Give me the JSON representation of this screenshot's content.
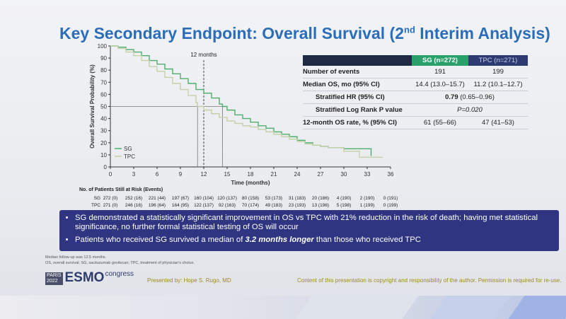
{
  "slide": {
    "title_main": "Key Secondary Endpoint: Overall Survival (2",
    "title_sup": "nd",
    "title_end": " Interim Analysis)"
  },
  "chart_data": {
    "type": "line",
    "ylabel": "Overall Survival Probability (%)",
    "xlabel": "Time (months)",
    "xlim": [
      0,
      36
    ],
    "ylim": [
      0,
      100
    ],
    "x_ticks": [
      0,
      3,
      6,
      9,
      12,
      15,
      18,
      21,
      24,
      27,
      30,
      33,
      36
    ],
    "y_ticks": [
      0,
      10,
      20,
      30,
      40,
      50,
      60,
      70,
      80,
      90,
      100
    ],
    "annotation": "12 months",
    "annotation_x": 12,
    "median_y": 50,
    "median_x": [
      14.4,
      11.2
    ],
    "legend": [
      "SG",
      "TPC"
    ],
    "legend_position": "bottom-left",
    "series": [
      {
        "name": "SG",
        "color": "#4fae6e",
        "points": [
          [
            0,
            100
          ],
          [
            1,
            99
          ],
          [
            2,
            97
          ],
          [
            3,
            95
          ],
          [
            4,
            92
          ],
          [
            5,
            88
          ],
          [
            6,
            85
          ],
          [
            7,
            81
          ],
          [
            8,
            77
          ],
          [
            9,
            73
          ],
          [
            10,
            69
          ],
          [
            11,
            64
          ],
          [
            12,
            61
          ],
          [
            13,
            57
          ],
          [
            14,
            52
          ],
          [
            14.4,
            50
          ],
          [
            15,
            47
          ],
          [
            16,
            43
          ],
          [
            17,
            40
          ],
          [
            18,
            37
          ],
          [
            19,
            34
          ],
          [
            20,
            32
          ],
          [
            21,
            29
          ],
          [
            22,
            27
          ],
          [
            23,
            25
          ],
          [
            24,
            22
          ],
          [
            25,
            20
          ],
          [
            26,
            18
          ],
          [
            27,
            17
          ],
          [
            28,
            16
          ],
          [
            29,
            16
          ],
          [
            30,
            15
          ],
          [
            31,
            15
          ],
          [
            32,
            15
          ],
          [
            33,
            15
          ],
          [
            33.5,
            9
          ]
        ]
      },
      {
        "name": "TPC",
        "color": "#c3d1a8",
        "points": [
          [
            0,
            100
          ],
          [
            1,
            98
          ],
          [
            2,
            95
          ],
          [
            3,
            92
          ],
          [
            4,
            88
          ],
          [
            5,
            83
          ],
          [
            6,
            79
          ],
          [
            7,
            74
          ],
          [
            8,
            69
          ],
          [
            9,
            64
          ],
          [
            10,
            59
          ],
          [
            11,
            53
          ],
          [
            11.2,
            50
          ],
          [
            12,
            47
          ],
          [
            13,
            44
          ],
          [
            14,
            41
          ],
          [
            15,
            38
          ],
          [
            16,
            36
          ],
          [
            17,
            34
          ],
          [
            18,
            33
          ],
          [
            19,
            31
          ],
          [
            20,
            29
          ],
          [
            21,
            27
          ],
          [
            22,
            25
          ],
          [
            23,
            23
          ],
          [
            24,
            21
          ],
          [
            25,
            19
          ],
          [
            26,
            18
          ],
          [
            27,
            17
          ],
          [
            28,
            16
          ],
          [
            29,
            16
          ],
          [
            30,
            13
          ],
          [
            31,
            13
          ],
          [
            32,
            8
          ],
          [
            33,
            8
          ],
          [
            35,
            8
          ]
        ]
      }
    ]
  },
  "risk_table": {
    "title": "No. of Patients Still at Risk (Events)",
    "rows": [
      {
        "label": "SG",
        "values": [
          "272 (0)",
          "252 (16)",
          "221 (44)",
          "197 (67)",
          "160 (104)",
          "120 (137)",
          "80 (158)",
          "53 (173)",
          "31 (183)",
          "20 (186)",
          "4 (190)",
          "2 (190)",
          "0 (191)"
        ]
      },
      {
        "label": "TPC",
        "values": [
          "271 (0)",
          "246 (16)",
          "196 (64)",
          "164 (95)",
          "122 (137)",
          "92 (163)",
          "70 (174)",
          "49 (183)",
          "23 (193)",
          "13 (196)",
          "5 (198)",
          "1 (199)",
          "0 (199)"
        ]
      }
    ]
  },
  "results_table": {
    "header_sg": "SG (n=272)",
    "header_tpc": "TPC (n=271)",
    "rows": [
      {
        "label": "Number of events",
        "sg": "191",
        "tpc": "199"
      },
      {
        "label": "Median OS, mo (95% CI)",
        "sg": "14.4 (13.0–15.7)",
        "tpc": "11.2 (10.1–12.7)"
      }
    ],
    "hr_label": "Stratified HR (95% CI)",
    "hr_bold": "0.79",
    "hr_rest": " (0.65–0.96)",
    "pval_label": "Stratified Log Rank P value",
    "pval_value": "P=0.020",
    "rate_label": "12-month OS rate, % (95% CI)",
    "rate_sg": "61 (55–66)",
    "rate_tpc": "47 (41–53)"
  },
  "bullets": {
    "b1": "SG demonstrated a statistically significant improvement in OS vs TPC with 21% reduction in the risk of death; having met statistical significance, no further formal statistical testing of OS will occur",
    "b2_pre": "Patients who received SG survived a median of ",
    "b2_em": "3.2 months longer",
    "b2_post": " than those who received TPC"
  },
  "footnote": {
    "line1": "Median follow-up was 12.5 months.",
    "line2": "OS, overall survival; SG, sacituzumab govitecan; TPC, treatment of physician's choice."
  },
  "footer": {
    "paris": "PARIS",
    "year": "2022",
    "esmo": "ESMO",
    "congress": "congress",
    "presenter": "Presented by: Hope S. Rugo, MD",
    "copyright": "Content of this presentation is copyright and responsibility of the author. Permission is required for re-use."
  }
}
